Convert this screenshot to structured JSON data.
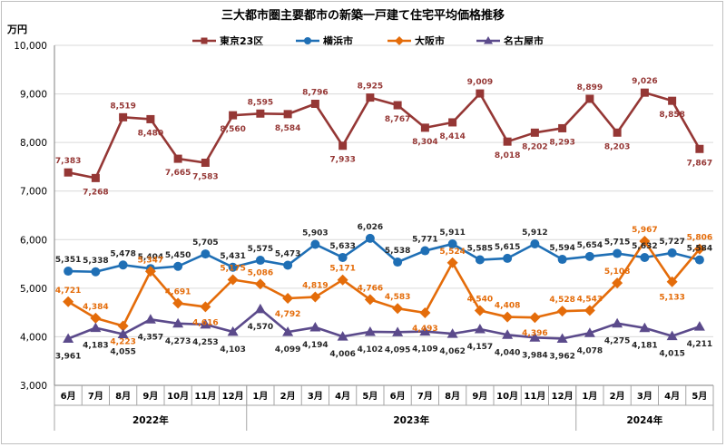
{
  "chart_data": {
    "type": "line",
    "title": "三大都市圏主要都市の新築一戸建て住宅平均価格推移",
    "ylabel": "万円",
    "ylim": [
      3000,
      10000
    ],
    "yticks": [
      "3,000",
      "4,000",
      "5,000",
      "6,000",
      "7,000",
      "8,000",
      "9,000",
      "10,000"
    ],
    "grid": true,
    "legend_position": "top",
    "categories": [
      "6月",
      "7月",
      "8月",
      "9月",
      "10月",
      "11月",
      "12月",
      "1月",
      "2月",
      "3月",
      "4月",
      "5月",
      "6月",
      "7月",
      "8月",
      "9月",
      "10月",
      "11月",
      "12月",
      "1月",
      "2月",
      "3月",
      "4月",
      "5月"
    ],
    "years": [
      {
        "label": "2022年",
        "start": 0,
        "end": 6
      },
      {
        "label": "2023年",
        "start": 7,
        "end": 18
      },
      {
        "label": "2024年",
        "start": 19,
        "end": 23
      }
    ],
    "series": [
      {
        "name": "東京23区",
        "color": "#953735",
        "marker": "square",
        "values": [
          7383,
          7268,
          8519,
          8480,
          7665,
          7583,
          8560,
          8595,
          8584,
          8796,
          7933,
          8925,
          8767,
          8304,
          8414,
          9009,
          8018,
          8202,
          8293,
          8899,
          8203,
          9026,
          8858,
          7867
        ],
        "labels": [
          "7,383",
          "7,268",
          "8,519",
          "8,480",
          "7,665",
          "7,583",
          "8,560",
          "8,595",
          "8,584",
          "8,796",
          "7,933",
          "8,925",
          "8,767",
          "8,304",
          "8,414",
          "9,009",
          "8,018",
          "8,202",
          "8,293",
          "8,899",
          "8,203",
          "9,026",
          "8,858",
          "7,867"
        ]
      },
      {
        "name": "横浜市",
        "color": "#1f6fb5",
        "marker": "circle",
        "values": [
          5351,
          5338,
          5478,
          5404,
          5450,
          5705,
          5431,
          5575,
          5473,
          5903,
          5633,
          6026,
          5538,
          5771,
          5911,
          5585,
          5615,
          5912,
          5594,
          5654,
          5715,
          5632,
          5727,
          5584
        ],
        "labels": [
          "5,351",
          "5,338",
          "5,478",
          "5,404",
          "5,450",
          "5,705",
          "5,431",
          "5,575",
          "5,473",
          "5,903",
          "5,633",
          "6,026",
          "5,538",
          "5,771",
          "5,911",
          "5,585",
          "5,615",
          "5,912",
          "5,594",
          "5,654",
          "5,715",
          "5,632",
          "5,727",
          "5,584"
        ]
      },
      {
        "name": "大阪市",
        "color": "#e46c0a",
        "marker": "diamond",
        "values": [
          4721,
          4384,
          4223,
          5347,
          4691,
          4616,
          5175,
          5086,
          4792,
          4819,
          5171,
          4766,
          4583,
          4493,
          5524,
          4540,
          4408,
          4396,
          4528,
          4543,
          5108,
          5967,
          5133,
          5806
        ],
        "labels": [
          "4,721",
          "4,384",
          "4,223",
          "5,347",
          "4,691",
          "4,616",
          "5,175",
          "5,086",
          "4,792",
          "4,819",
          "5,171",
          "4,766",
          "4,583",
          "4,493",
          "5,524",
          "4,540",
          "4,408",
          "4,396",
          "4,528",
          "4,543",
          "5,108",
          "5,967",
          "5,133",
          "5,806"
        ]
      },
      {
        "name": "名古屋市",
        "color": "#5b4a8b",
        "marker": "triangle",
        "values": [
          3961,
          4183,
          4055,
          4357,
          4273,
          4253,
          4103,
          4570,
          4099,
          4194,
          4006,
          4102,
          4095,
          4109,
          4062,
          4157,
          4040,
          3984,
          3962,
          4078,
          4275,
          4181,
          4015,
          4211
        ],
        "labels": [
          "3,961",
          "4,183",
          "4,055",
          "4,357",
          "4,273",
          "4,253",
          "4,103",
          "4,570",
          "4,099",
          "4,194",
          "4,006",
          "4,102",
          "4,095",
          "4,109",
          "4,062",
          "4,157",
          "4,040",
          "3,984",
          "3,962",
          "4,078",
          "4,275",
          "4,181",
          "4,015",
          "4,211"
        ]
      }
    ]
  }
}
